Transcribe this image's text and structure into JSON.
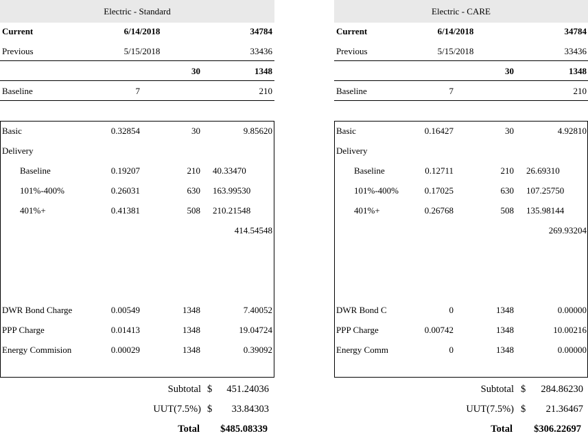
{
  "panels": [
    {
      "title": "Electric - Standard",
      "current": {
        "label": "Current",
        "date": "6/14/2018",
        "reading": "34784"
      },
      "previous": {
        "label": "Previous",
        "date": "5/15/2018",
        "reading": "33436"
      },
      "usage": {
        "days": "30",
        "kwh": "1348"
      },
      "baseline": {
        "label": "Baseline",
        "days": "7",
        "kwh": "210"
      },
      "basic": {
        "label": "Basic",
        "rate": "0.32854",
        "qty": "30",
        "amount": "9.85620"
      },
      "delivery": {
        "label": "Delivery",
        "rows": [
          {
            "label": "Baseline",
            "rate": "0.19207",
            "qty": "210",
            "amount": "40.33470"
          },
          {
            "label": "101%-400%",
            "rate": "0.26031",
            "qty": "630",
            "amount": "163.99530"
          },
          {
            "label": "401%+",
            "rate": "0.41381",
            "qty": "508",
            "amount": "210.21548"
          }
        ],
        "total": "414.54548"
      },
      "charges": [
        {
          "label": "DWR Bond Charge",
          "rate": "0.00549",
          "qty": "1348",
          "amount": "7.40052"
        },
        {
          "label": "PPP Charge",
          "rate": "0.01413",
          "qty": "1348",
          "amount": "19.04724"
        },
        {
          "label": "Energy Commision",
          "rate": "0.00029",
          "qty": "1348",
          "amount": "0.39092"
        }
      ],
      "subtotal": {
        "label": "Subtotal",
        "currency": "$",
        "value": "451.24036"
      },
      "uut": {
        "label": "UUT(7.5%)",
        "currency": "$",
        "value": "33.84303"
      },
      "total": {
        "label": "Total",
        "value": "$485.08339"
      }
    },
    {
      "title": "Electric - CARE",
      "current": {
        "label": "Current",
        "date": "6/14/2018",
        "reading": "34784"
      },
      "previous": {
        "label": "Previous",
        "date": "5/15/2018",
        "reading": "33436"
      },
      "usage": {
        "days": "30",
        "kwh": "1348"
      },
      "baseline": {
        "label": "Baseline",
        "days": "7",
        "kwh": "210"
      },
      "basic": {
        "label": "Basic",
        "rate": "0.16427",
        "qty": "30",
        "amount": "4.92810"
      },
      "delivery": {
        "label": "Delivery",
        "rows": [
          {
            "label": "Baseline",
            "rate": "0.12711",
            "qty": "210",
            "amount": "26.69310"
          },
          {
            "label": "101%-400%",
            "rate": "0.17025",
            "qty": "630",
            "amount": "107.25750"
          },
          {
            "label": "401%+",
            "rate": "0.26768",
            "qty": "508",
            "amount": "135.98144"
          }
        ],
        "total": "269.93204"
      },
      "charges": [
        {
          "label": "DWR Bond C",
          "rate": "0",
          "qty": "1348",
          "amount": "0.00000"
        },
        {
          "label": "PPP Charge",
          "rate": "0.00742",
          "qty": "1348",
          "amount": "10.00216"
        },
        {
          "label": "Energy Comm",
          "rate": "0",
          "qty": "1348",
          "amount": "0.00000"
        }
      ],
      "subtotal": {
        "label": "Subtotal",
        "currency": "$",
        "value": "284.86230"
      },
      "uut": {
        "label": "UUT(7.5%)",
        "currency": "$",
        "value": "21.36467"
      },
      "total": {
        "label": "Total",
        "value": "$306.22697"
      }
    }
  ]
}
